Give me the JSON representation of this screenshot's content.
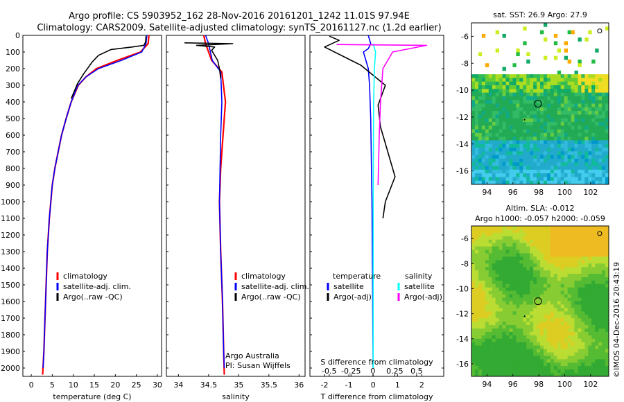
{
  "header": {
    "line1": "Argo profile: CS 5903952_162 28-Nov-2016 20161201_1242 11.01S 97.94E",
    "line2": "Climatology: CARS2009. Satellite-adjusted climatology: synTS_20161127.nc (1.2d earlier)"
  },
  "footer": {
    "credit": "©IMOS 04-Dec-2016 20:43:19"
  },
  "colors": {
    "climatology": "#ff0000",
    "satellite": "#0000ff",
    "argo": "#000000",
    "sal_satellite": "#00ffff",
    "sal_argo": "#ff00ff"
  },
  "chart_data": [
    {
      "type": "line",
      "name": "temperature",
      "xlabel": "temperature (deg C)",
      "ylabel": "",
      "xlim": [
        -2,
        31
      ],
      "ylim": [
        2050,
        0
      ],
      "xticks": [
        "0",
        "5",
        "10",
        "15",
        "20",
        "25",
        "30"
      ],
      "xtick_values": [
        0,
        5,
        10,
        15,
        20,
        25,
        30
      ],
      "yticks": [
        "0",
        "100",
        "200",
        "300",
        "400",
        "500",
        "600",
        "700",
        "800",
        "900",
        "1000",
        "1100",
        "1200",
        "1300",
        "1400",
        "1500",
        "1600",
        "1700",
        "1800",
        "1900",
        "2000"
      ],
      "ytick_values": [
        0,
        100,
        200,
        300,
        400,
        500,
        600,
        700,
        800,
        900,
        1000,
        1100,
        1200,
        1300,
        1400,
        1500,
        1600,
        1700,
        1800,
        1900,
        2000
      ],
      "legend": [
        "climatology",
        "satellite-adj. clim.",
        "Argo(..raw -QC)"
      ],
      "series": [
        {
          "name": "climatology",
          "color": "#ff0000",
          "x": [
            28.0,
            27.8,
            26.0,
            20.5,
            15.5,
            13.0,
            11.2,
            9.5,
            8.3,
            7.2,
            6.4,
            5.6,
            5.0,
            4.3,
            3.8,
            3.4,
            3.0,
            2.7
          ],
          "y": [
            0,
            50,
            100,
            150,
            200,
            250,
            300,
            400,
            500,
            600,
            700,
            800,
            900,
            1100,
            1300,
            1600,
            1900,
            2040
          ]
        },
        {
          "name": "satellite-adj. clim.",
          "color": "#0000ff",
          "x": [
            27.5,
            27.3,
            26.3,
            21.5,
            16.0,
            13.0,
            11.1,
            9.5,
            8.3,
            7.2,
            6.4,
            5.6,
            5.0,
            4.3,
            3.8,
            3.4,
            3.0,
            2.8
          ],
          "y": [
            0,
            50,
            100,
            150,
            200,
            250,
            300,
            400,
            500,
            600,
            700,
            800,
            900,
            1100,
            1300,
            1600,
            1900,
            2000
          ]
        },
        {
          "name": "Argo(..raw -QC)",
          "color": "#000000",
          "x": [
            27.3,
            27.2,
            26.8,
            24.0,
            19.0,
            16.0,
            14.5,
            12.5,
            11.0,
            9.5
          ],
          "y": [
            5,
            40,
            60,
            70,
            85,
            120,
            160,
            230,
            290,
            380
          ]
        }
      ]
    },
    {
      "type": "line",
      "name": "salinity",
      "xlabel": "salinity",
      "ylabel": "",
      "xlim": [
        33.8,
        36.1
      ],
      "ylim": [
        2050,
        0
      ],
      "xticks": [
        "34",
        "34.5",
        "35",
        "35.5",
        "36"
      ],
      "xtick_values": [
        34,
        34.5,
        35,
        35.5,
        36
      ],
      "legend": [
        "climatology",
        "satellite-adj. clim.",
        "Argo(..raw -QC)"
      ],
      "annotations": [
        "Argo Australia",
        "PI: Susan Wijffels"
      ],
      "series": [
        {
          "name": "climatology",
          "color": "#ff0000",
          "x": [
            34.42,
            34.45,
            34.55,
            34.72,
            34.78,
            34.74,
            34.7,
            34.68,
            34.7,
            34.73,
            34.75,
            34.76
          ],
          "y": [
            0,
            50,
            150,
            220,
            400,
            600,
            800,
            1000,
            1300,
            1600,
            1900,
            2040
          ]
        },
        {
          "name": "satellite-adj. clim.",
          "color": "#0000ff",
          "x": [
            34.45,
            34.5,
            34.56,
            34.7,
            34.72,
            34.7,
            34.69,
            34.68,
            34.7,
            34.73,
            34.75,
            34.76
          ],
          "y": [
            0,
            50,
            150,
            220,
            400,
            600,
            800,
            1000,
            1300,
            1600,
            1900,
            2000
          ]
        },
        {
          "name": "Argo(..raw -QC)",
          "color": "#000000",
          "x": [
            34.1,
            34.9,
            34.3,
            34.6,
            34.55,
            34.65,
            34.68,
            34.7
          ],
          "y": [
            45,
            50,
            60,
            70,
            90,
            150,
            200,
            260
          ]
        }
      ]
    },
    {
      "type": "line",
      "name": "difference",
      "xlabel": "T difference from climatology",
      "x2label": "S difference from climatology",
      "ylabel": "",
      "xlim": [
        -2.6,
        2.9
      ],
      "ylim": [
        2050,
        0
      ],
      "xticks": [
        "-2",
        "-1",
        "0",
        "1",
        "2"
      ],
      "xtick_values": [
        -2,
        -1,
        0,
        1,
        2
      ],
      "x2ticks": [
        "-0.5",
        "-0.25",
        "0",
        "0.25",
        "0.5"
      ],
      "x2tick_values": [
        -0.5,
        -0.25,
        0,
        0.25,
        0.5
      ],
      "legend": {
        "temperature_header": "temperature",
        "salinity_header": "salinity",
        "items": [
          "satellite",
          "Argo(-adj)",
          "satellite",
          "Argo(-adj)"
        ]
      },
      "series": [
        {
          "name": "T satellite",
          "color": "#0000ff",
          "x": [
            -0.2,
            -0.1,
            -0.2,
            -0.4,
            -0.3,
            -0.2,
            -0.15,
            -0.1,
            -0.05,
            0.0
          ],
          "y": [
            0,
            50,
            80,
            100,
            150,
            200,
            300,
            500,
            1000,
            2000
          ]
        },
        {
          "name": "T Argo(-adj)",
          "color": "#000000",
          "x": [
            -1.8,
            -1.4,
            -2.0,
            -0.5,
            0.5,
            0.2,
            0.3,
            0.6,
            0.9,
            0.5,
            0.4
          ],
          "y": [
            5,
            30,
            70,
            180,
            300,
            420,
            550,
            700,
            850,
            1000,
            1100
          ]
        },
        {
          "name": "S satellite",
          "color": "#00ffff",
          "x": [
            0.0,
            0.1,
            0.05,
            0.02,
            0.0,
            0.0
          ],
          "y": [
            50,
            100,
            200,
            400,
            1000,
            2000
          ]
        },
        {
          "name": "S Argo(-adj)",
          "color": "#ff00ff",
          "x": [
            -1.5,
            2.2,
            0.8,
            0.4,
            0.3,
            0.25,
            0.2
          ],
          "y": [
            55,
            60,
            100,
            200,
            400,
            600,
            900
          ]
        }
      ]
    },
    {
      "type": "heatmap",
      "name": "sst-map",
      "title": "sat. SST: 26.9 Argo: 27.9",
      "xlim": [
        92.8,
        103.4
      ],
      "ylim": [
        -17,
        -5
      ],
      "xticks": [
        "94",
        "96",
        "98",
        "100",
        "102"
      ],
      "xtick_values": [
        94,
        96,
        98,
        100,
        102
      ],
      "yticks": [
        "-6",
        "-8",
        "-10",
        "-12",
        "-14",
        "-16"
      ],
      "ytick_values": [
        -6,
        -8,
        -10,
        -12,
        -14,
        -16
      ],
      "argo_position": [
        97.94,
        -11.01
      ]
    },
    {
      "type": "heatmap",
      "name": "sla-map",
      "title": "Altim. SLA: -0.012",
      "subtitle": "Argo h1000: -0.057 h2000: -0.059",
      "xlim": [
        92.8,
        103.4
      ],
      "ylim": [
        -17,
        -5
      ],
      "xticks": [
        "94",
        "96",
        "98",
        "100",
        "102"
      ],
      "xtick_values": [
        94,
        96,
        98,
        100,
        102
      ],
      "yticks": [
        "-6",
        "-8",
        "-10",
        "-12",
        "-14",
        "-16"
      ],
      "ytick_values": [
        -6,
        -8,
        -10,
        -12,
        -14,
        -16
      ],
      "argo_position": [
        97.94,
        -11.01
      ]
    }
  ]
}
